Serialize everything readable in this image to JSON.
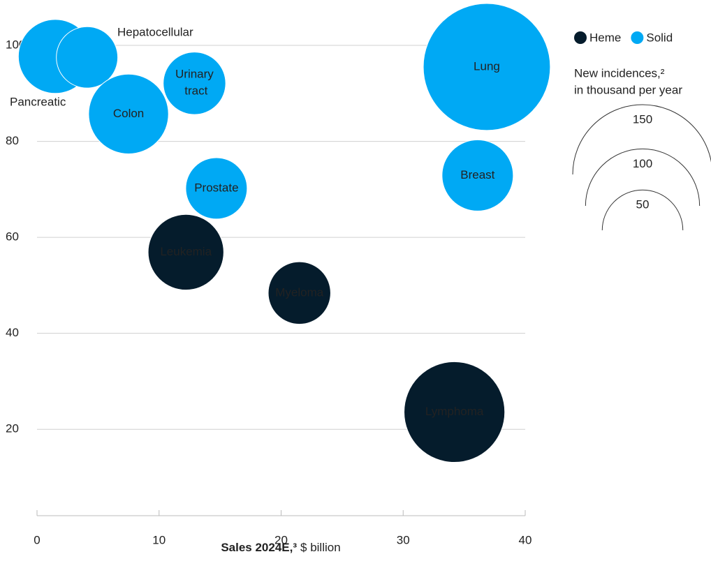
{
  "chart_data": {
    "type": "bubble",
    "x_label_bold": "Sales 2024E,³",
    "x_label": "$ billion",
    "size_title": [
      "New incidences,²",
      "in thousand per year"
    ],
    "xlim": [
      0,
      40
    ],
    "xticks": [
      0,
      10,
      20,
      30,
      40
    ],
    "ylim": [
      2,
      108
    ],
    "yticks": [
      20,
      40,
      60,
      80,
      100
    ],
    "grid": true,
    "size_legend": [
      150,
      100,
      50
    ],
    "series": [
      {
        "name": "Heme",
        "color": "#051c2c",
        "label_color": "#ffffff",
        "labels": [
          "Leukemia",
          "Myeloma",
          "Lymphoma"
        ],
        "x": [
          12.2,
          21.5,
          34.2
        ],
        "values": [
          56.9,
          48.4,
          23.6
        ],
        "sizes": [
          44,
          30,
          78
        ]
      },
      {
        "name": "Solid",
        "color": "#00a9f4",
        "label_color": "#051c2c",
        "labels": [
          "Pancreatic",
          "Hepatocellular",
          "Colon",
          "Urinary tract",
          "Prostate",
          "Breast",
          "Lung"
        ],
        "x": [
          1.5,
          4.1,
          7.5,
          12.9,
          14.7,
          36.1,
          36.85
        ],
        "values": [
          97.7,
          97.5,
          85.7,
          92.1,
          70.2,
          72.9,
          95.5
        ],
        "sizes": [
          42,
          29,
          49,
          30,
          29,
          39,
          124
        ]
      }
    ]
  }
}
